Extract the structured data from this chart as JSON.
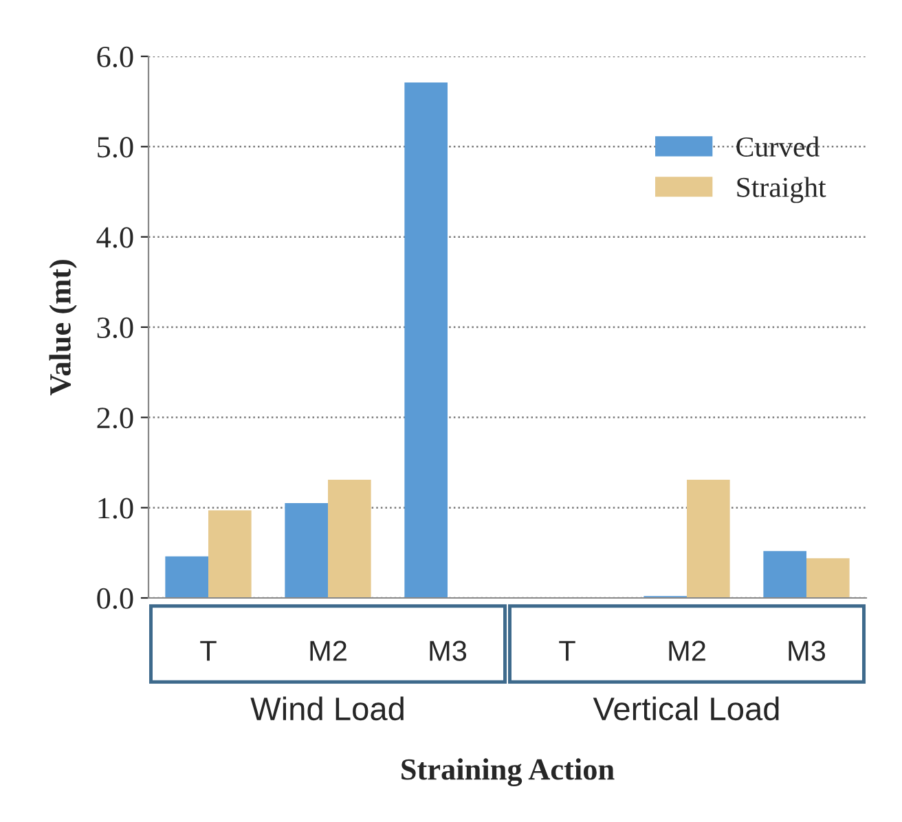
{
  "chart_data": {
    "type": "bar",
    "xlabel": "Straining Action",
    "ylabel": "Value (mt)",
    "categories": [
      "T",
      "M2",
      "M3",
      "T",
      "M2",
      "M3"
    ],
    "series": [
      {
        "name": "Curved",
        "color": "#5b9bd5",
        "values": [
          0.46,
          1.05,
          5.71,
          null,
          0.02,
          0.52
        ]
      },
      {
        "name": "Straight",
        "color": "#e6c98e",
        "values": [
          0.97,
          1.31,
          null,
          null,
          1.31,
          0.44
        ]
      }
    ],
    "annotations": [
      "Wind Load",
      "Vertical Load"
    ],
    "ylim": [
      0,
      6
    ],
    "yticks": [
      {
        "value": 0,
        "label": "0.0"
      },
      {
        "value": 1,
        "label": "1.0"
      },
      {
        "value": 2,
        "label": "2.0"
      },
      {
        "value": 3,
        "label": "3.0"
      },
      {
        "value": 4,
        "label": "4.0"
      },
      {
        "value": 5,
        "label": "5.0"
      },
      {
        "value": 6,
        "label": "6.0"
      }
    ],
    "grid": "y",
    "legend": "top right"
  }
}
